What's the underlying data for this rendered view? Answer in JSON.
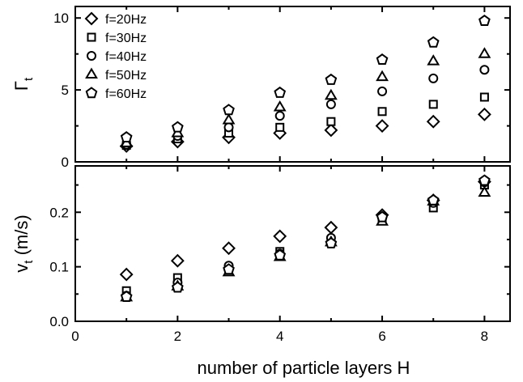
{
  "chart_data": {
    "type": "scatter",
    "xlabel": "number of particle layers H",
    "xlim": [
      0,
      8.5
    ],
    "x_ticks": [
      0,
      2,
      4,
      6,
      8
    ],
    "x_minor_ticks": [
      1,
      3,
      5,
      7
    ],
    "legend": {
      "placement": "top-left"
    },
    "panels": [
      {
        "id": "top",
        "ylabel_main": "Γ",
        "ylabel_sub": "t",
        "ylim": [
          0,
          10.8
        ],
        "y_ticks": [
          0,
          5,
          10
        ],
        "y_minor_ticks": [
          2.5,
          7.5
        ],
        "series": [
          {
            "name": "f=20Hz",
            "marker": "diamond",
            "x": [
              1,
              2,
              3,
              4,
              5,
              6,
              7,
              8
            ],
            "y": [
              1.1,
              1.4,
              1.7,
              2.0,
              2.2,
              2.5,
              2.8,
              3.3
            ]
          },
          {
            "name": "f=30Hz",
            "marker": "square",
            "x": [
              1,
              2,
              3,
              4,
              5,
              6,
              7,
              8
            ],
            "y": [
              1.15,
              1.6,
              2.0,
              2.4,
              2.8,
              3.5,
              4.0,
              4.5
            ]
          },
          {
            "name": "f=40Hz",
            "marker": "circle",
            "x": [
              1,
              2,
              3,
              4,
              5,
              6,
              7,
              8
            ],
            "y": [
              1.2,
              1.8,
              2.4,
              3.2,
              4.0,
              4.9,
              5.8,
              6.4
            ]
          },
          {
            "name": "f=50Hz",
            "marker": "triangle",
            "x": [
              1,
              2,
              3,
              4,
              5,
              6,
              7,
              8
            ],
            "y": [
              1.3,
              2.0,
              2.9,
              3.8,
              4.6,
              5.9,
              7.0,
              7.5
            ]
          },
          {
            "name": "f=60Hz",
            "marker": "pentagon",
            "x": [
              1,
              2,
              3,
              4,
              5,
              6,
              7,
              8
            ],
            "y": [
              1.7,
              2.4,
              3.6,
              4.8,
              5.7,
              7.1,
              8.3,
              9.8
            ]
          }
        ]
      },
      {
        "id": "bottom",
        "ylabel_main": "v",
        "ylabel_sub": "t",
        "ylabel_rest": " (m/s)",
        "ylim": [
          0.0,
          0.285
        ],
        "y_ticks": [
          0.0,
          0.1,
          0.2
        ],
        "y_tick_labels": [
          "0.0",
          "0.1",
          "0.2"
        ],
        "y_minor_ticks": [
          0.05,
          0.15,
          0.25
        ],
        "series": [
          {
            "name": "f=20Hz",
            "marker": "diamond",
            "x": [
              1,
              2,
              3,
              4,
              5,
              6,
              7,
              8
            ],
            "y": [
              0.086,
              0.111,
              0.134,
              0.156,
              0.172,
              0.195,
              0.222,
              0.256
            ]
          },
          {
            "name": "f=30Hz",
            "marker": "square",
            "x": [
              1,
              2,
              3,
              4,
              5,
              6,
              7,
              8
            ],
            "y": [
              0.056,
              0.08,
              0.095,
              0.128,
              0.148,
              0.187,
              0.208,
              0.25
            ]
          },
          {
            "name": "f=40Hz",
            "marker": "circle",
            "x": [
              1,
              2,
              3,
              4,
              5,
              6,
              7,
              8
            ],
            "y": [
              0.047,
              0.071,
              0.102,
              0.124,
              0.153,
              0.19,
              0.217,
              0.255
            ]
          },
          {
            "name": "f=50Hz",
            "marker": "triangle",
            "x": [
              1,
              2,
              3,
              4,
              5,
              6,
              7,
              8
            ],
            "y": [
              0.044,
              0.064,
              0.09,
              0.118,
              0.145,
              0.183,
              0.22,
              0.236
            ]
          },
          {
            "name": "f=60Hz",
            "marker": "pentagon",
            "x": [
              1,
              2,
              3,
              4,
              5,
              6,
              7,
              8
            ],
            "y": [
              0.045,
              0.062,
              0.095,
              0.121,
              0.143,
              0.191,
              0.222,
              0.258
            ]
          }
        ]
      }
    ]
  }
}
